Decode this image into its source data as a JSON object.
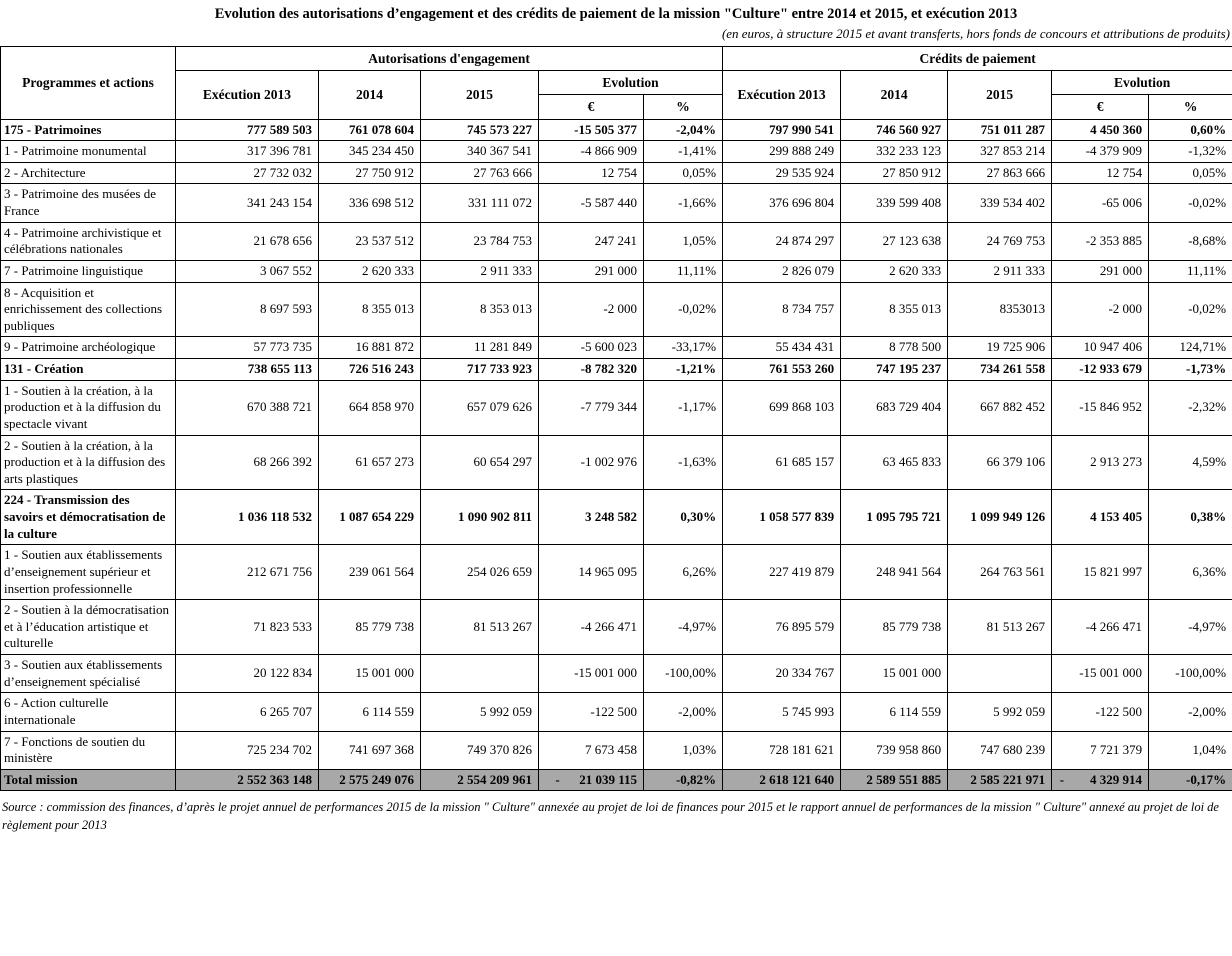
{
  "title": "Evolution des autorisations d’engagement et des crédits de paiement de la mission \"Culture\" entre 2014 et 2015, et exécution 2013",
  "subtitle": "(en euros, à structure 2015 et avant transferts, hors fonds de concours et attributions de produits)",
  "table": {
    "header": {
      "programmes": "Programmes et actions",
      "group_ae": "Autorisations d'engagement",
      "group_cp": "Crédits de paiement",
      "exec2013": "Exécution 2013",
      "y2014": "2014",
      "y2015": "2015",
      "evolution": "Evolution",
      "euro": "€",
      "pct": "%"
    },
    "rows": [
      {
        "label": "175 - Patrimoines",
        "style": "section",
        "values": [
          "777 589 503",
          "761 078 604",
          "745 573 227",
          "-15 505 377",
          "-2,04%",
          "797 990 541",
          "746 560 927",
          "751 011 287",
          "4 450 360",
          "0,60%"
        ]
      },
      {
        "label": "1 - Patrimoine monumental",
        "style": "action",
        "values": [
          "317 396 781",
          "345 234 450",
          "340 367 541",
          "-4 866 909",
          "-1,41%",
          "299 888 249",
          "332 233 123",
          "327 853 214",
          "-4 379 909",
          "-1,32%"
        ]
      },
      {
        "label": "2 - Architecture",
        "style": "action",
        "values": [
          "27 732 032",
          "27 750 912",
          "27 763 666",
          "12 754",
          "0,05%",
          "29 535 924",
          "27 850 912",
          "27 863 666",
          "12 754",
          "0,05%"
        ]
      },
      {
        "label": "3 - Patrimoine des musées de France",
        "style": "action",
        "values": [
          "341 243 154",
          "336 698 512",
          "331 111 072",
          "-5 587 440",
          "-1,66%",
          "376 696 804",
          "339 599 408",
          "339 534 402",
          "-65 006",
          "-0,02%"
        ]
      },
      {
        "label": "4 - Patrimoine archivistique et célébrations nationales",
        "style": "action",
        "values": [
          "21 678 656",
          "23 537 512",
          "23 784 753",
          "247 241",
          "1,05%",
          "24 874 297",
          "27 123 638",
          "24 769 753",
          "-2 353 885",
          "-8,68%"
        ]
      },
      {
        "label": "7 - Patrimoine linguistique",
        "style": "action",
        "values": [
          "3 067 552",
          "2 620 333",
          "2 911 333",
          "291 000",
          "11,11%",
          "2 826 079",
          "2 620 333",
          "2 911 333",
          "291 000",
          "11,11%"
        ]
      },
      {
        "label": "8 - Acquisition et enrichissement des collections publiques",
        "style": "action",
        "values": [
          "8 697 593",
          "8 355 013",
          "8 353 013",
          "-2 000",
          "-0,02%",
          "8 734 757",
          "8 355 013",
          "8353013",
          "-2 000",
          "-0,02%"
        ]
      },
      {
        "label": "9 - Patrimoine archéologique",
        "style": "action",
        "values": [
          "57 773 735",
          "16 881 872",
          "11 281 849",
          "-5 600 023",
          "-33,17%",
          "55 434 431",
          "8 778 500",
          "19 725 906",
          "10 947 406",
          "124,71%"
        ]
      },
      {
        "label": "131 - Création",
        "style": "section",
        "values": [
          "738 655 113",
          "726 516 243",
          "717 733 923",
          "-8 782 320",
          "-1,21%",
          "761 553 260",
          "747 195 237",
          "734 261 558",
          "-12 933 679",
          "-1,73%"
        ]
      },
      {
        "label": "1 - Soutien à la création, à la production et à la diffusion du spectacle vivant",
        "style": "action",
        "values": [
          "670 388 721",
          "664 858 970",
          "657 079 626",
          "-7 779 344",
          "-1,17%",
          "699 868 103",
          "683 729 404",
          "667 882 452",
          "-15 846 952",
          "-2,32%"
        ]
      },
      {
        "label": "2 - Soutien à la création, à la production et à la diffusion des arts plastiques",
        "style": "action",
        "values": [
          "68 266 392",
          "61 657 273",
          "60 654 297",
          "-1 002 976",
          "-1,63%",
          "61 685 157",
          "63 465 833",
          "66 379 106",
          "2 913 273",
          "4,59%"
        ]
      },
      {
        "label": "224 - Transmission des savoirs et démocratisation de la culture",
        "style": "section",
        "values": [
          "1 036 118 532",
          "1 087 654 229",
          "1 090 902 811",
          "3 248 582",
          "0,30%",
          "1 058 577 839",
          "1 095 795 721",
          "1 099 949 126",
          "4 153 405",
          "0,38%"
        ]
      },
      {
        "label": "1 - Soutien aux établissements d’enseignement supérieur et insertion professionnelle",
        "style": "action",
        "values": [
          "212 671 756",
          "239 061 564",
          "254 026 659",
          "14 965 095",
          "6,26%",
          "227 419 879",
          "248 941 564",
          "264 763 561",
          "15 821 997",
          "6,36%"
        ]
      },
      {
        "label": "2 - Soutien à la démocratisation et à l’éducation artistique et culturelle",
        "style": "action",
        "values": [
          "71 823 533",
          "85 779 738",
          "81 513 267",
          "-4 266 471",
          "-4,97%",
          "76 895 579",
          "85 779 738",
          "81 513 267",
          "-4 266 471",
          "-4,97%"
        ]
      },
      {
        "label": "3 - Soutien aux établissements d’enseignement spécialisé",
        "style": "action",
        "values": [
          "20 122 834",
          "15 001 000",
          "",
          "-15 001 000",
          "-100,00%",
          "20 334 767",
          "15 001 000",
          "",
          "-15 001 000",
          "-100,00%"
        ]
      },
      {
        "label": "6 - Action culturelle internationale",
        "style": "action",
        "values": [
          "6 265 707",
          "6 114 559",
          "5 992 059",
          "-122 500",
          "-2,00%",
          "5 745 993",
          "6 114 559",
          "5 992 059",
          "-122 500",
          "-2,00%"
        ]
      },
      {
        "label": "7 - Fonctions de soutien du ministère",
        "style": "action",
        "values": [
          "725 234 702",
          "741 697 368",
          "749 370 826",
          "7 673 458",
          "1,03%",
          "728 181 621",
          "739 958 860",
          "747 680 239",
          "7 721 379",
          "1,04%"
        ]
      },
      {
        "label": "Total mission",
        "style": "total",
        "values": [
          "2 552 363 148",
          "2 575 249 076",
          "2 554 209 961",
          "-      21 039 115",
          "-0,82%",
          "2 618 121 640",
          "2 589 551 885",
          "2 585 221 971",
          "-        4 329 914",
          "-0,17%"
        ]
      }
    ]
  },
  "source": "Source : commission des finances, d’après le projet annuel de performances 2015 de la mission \" Culture\"  annexée au projet de loi de finances pour 2015 et le rapport annuel de performances de la mission \" Culture\"  annexé au projet de loi de règlement pour 2013"
}
